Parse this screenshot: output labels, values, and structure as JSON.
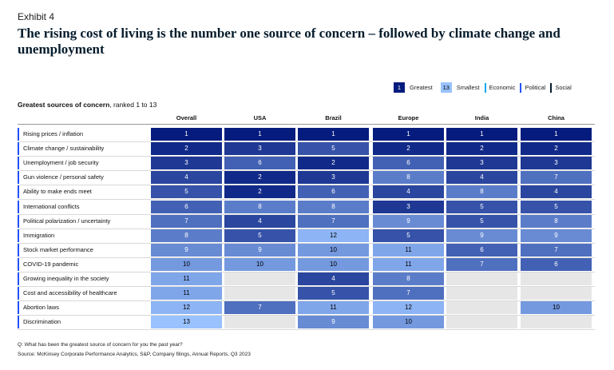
{
  "header": {
    "exhibit": "Exhibit 4",
    "title": "The rising cost of living is the number one source of concern – followed by climate change and unemployment"
  },
  "legend": {
    "greatest_rank": "1",
    "greatest_label": "Greatest",
    "smallest_rank": "13",
    "smallest_label": "Smallest",
    "economic_label": "Economic",
    "political_label": "Political",
    "social_label": "Social"
  },
  "subtitle": {
    "bold": "Greatest sources of concern",
    "rest": ", ranked 1 to 13"
  },
  "colors": {
    "category_bar": "#2251ff",
    "economic_bar": "#00a9f4",
    "political_bar": "#2251ff",
    "social_bar": "#051c2c",
    "empty_cell": "#e6e6e6"
  },
  "chart_data": {
    "type": "table",
    "title": "Greatest sources of concern, ranked 1 to 13",
    "columns": [
      "Overall",
      "USA",
      "Brazil",
      "Europe",
      "India",
      "China"
    ],
    "rows": [
      {
        "label": "Rising prices / inflation",
        "ranks": [
          1,
          1,
          1,
          1,
          1,
          1
        ]
      },
      {
        "label": "Climate change / sustainability",
        "ranks": [
          2,
          3,
          5,
          2,
          2,
          2
        ]
      },
      {
        "label": "Unemployment / job security",
        "ranks": [
          3,
          6,
          2,
          6,
          3,
          3
        ]
      },
      {
        "label": "Gun violence / personal safety",
        "ranks": [
          4,
          2,
          3,
          8,
          4,
          7
        ]
      },
      {
        "label": "Ability to make ends meet",
        "ranks": [
          5,
          2,
          6,
          4,
          8,
          4
        ]
      },
      {
        "label": "International conflicts",
        "ranks": [
          6,
          8,
          8,
          3,
          5,
          5
        ]
      },
      {
        "label": "Political polarization / uncertainty",
        "ranks": [
          7,
          4,
          7,
          9,
          5,
          8
        ]
      },
      {
        "label": "Immigration",
        "ranks": [
          8,
          5,
          12,
          5,
          9,
          9
        ]
      },
      {
        "label": "Stock market performance",
        "ranks": [
          9,
          9,
          10,
          11,
          6,
          7
        ]
      },
      {
        "label": "COVID-19 pandemic",
        "ranks": [
          10,
          10,
          10,
          11,
          7,
          6
        ]
      },
      {
        "label": "Growing inequality in the society",
        "ranks": [
          11,
          null,
          4,
          8,
          null,
          null
        ]
      },
      {
        "label": "Cost and accessibility of healthcare",
        "ranks": [
          11,
          null,
          5,
          7,
          null,
          null
        ]
      },
      {
        "label": "Abortion laws",
        "ranks": [
          12,
          7,
          11,
          12,
          null,
          10
        ]
      },
      {
        "label": "Discrimination",
        "ranks": [
          13,
          null,
          9,
          10,
          null,
          null
        ]
      }
    ],
    "scale": {
      "min_rank": 1,
      "max_rank": 13
    }
  },
  "footnotes": {
    "question": "Q: What has been the greatest source of concern for you the past year?",
    "source": "Source: McKinsey Corporate Performance Analytics, S&P, Company filings, Annual Reports, Q3 2023"
  }
}
